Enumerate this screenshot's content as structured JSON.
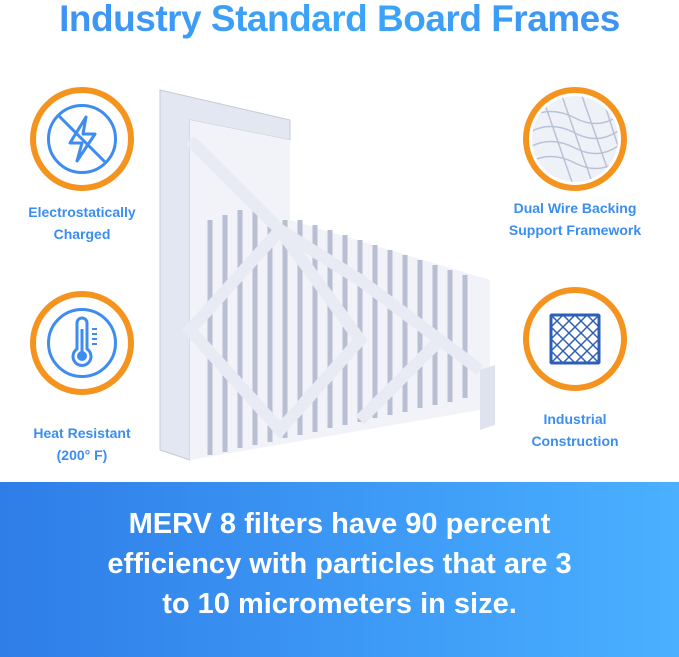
{
  "title": "Industry Standard Board Frames",
  "features": [
    {
      "icon": "no-static-lightning-icon",
      "line1": "Electrostatically",
      "line2": "Charged"
    },
    {
      "icon": "thermometer-icon",
      "line1": "Heat Resistant",
      "line2": "(200° F)"
    },
    {
      "icon": "wire-mesh-icon",
      "line1": "Dual Wire Backing",
      "line2": "Support Framework"
    },
    {
      "icon": "grid-frame-icon",
      "line1": "Industrial",
      "line2": "Construction"
    }
  ],
  "banner": {
    "line1": "MERV 8 filters have 90 percent",
    "line2": "efficiency with particles that are 3",
    "line3": "to 10 micrometers in size."
  },
  "colors": {
    "accent_blue": "#3a8ef0",
    "ring_orange": "#f5931f",
    "banner_blue": "#2f7de8"
  }
}
